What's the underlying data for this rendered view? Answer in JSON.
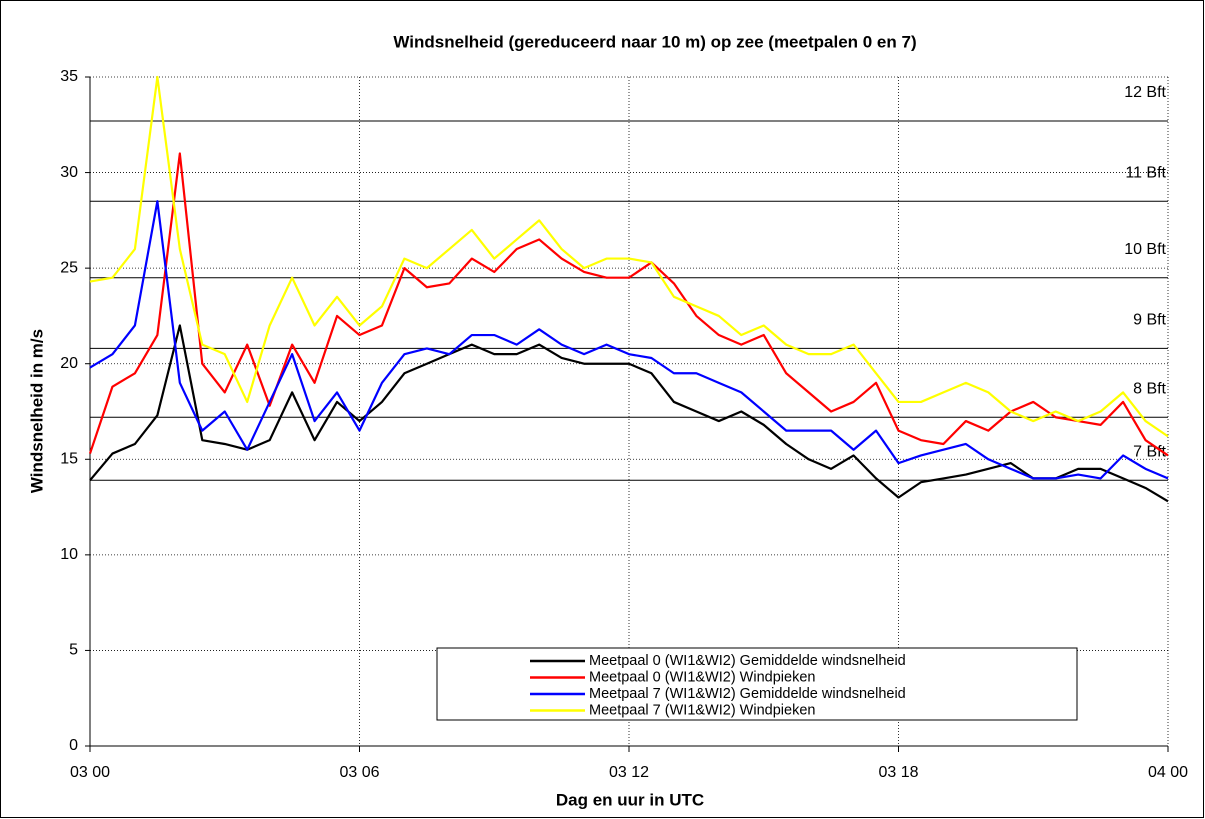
{
  "chart_data": {
    "type": "line",
    "title": "Windsnelheid (gereduceerd naar 10 m) op zee (meetpalen 0 en 7)",
    "x_label": "Dag en uur in UTC",
    "y_label": "Windsnelheid in m/s",
    "x": [
      0,
      0.5,
      1,
      1.5,
      2,
      2.5,
      3,
      3.5,
      4,
      4.5,
      5,
      5.5,
      6,
      6.5,
      7,
      7.5,
      8,
      8.5,
      9,
      9.5,
      10,
      10.5,
      11,
      11.5,
      12,
      12.5,
      13,
      13.5,
      14,
      14.5,
      15,
      15.5,
      16,
      16.5,
      17,
      17.5,
      18,
      18.5,
      19,
      19.5,
      20,
      20.5,
      21,
      21.5,
      22,
      22.5,
      23,
      23.5,
      24
    ],
    "series": [
      {
        "name": "Meetpaal 0 (WI1&WI2) Gemiddelde windsnelheid",
        "color": "#000000",
        "values": [
          13.9,
          15.3,
          15.8,
          17.3,
          22,
          16,
          15.8,
          15.5,
          16,
          18.5,
          16,
          18,
          17,
          18,
          19.5,
          20,
          20.5,
          21,
          20.5,
          20.5,
          21,
          20.3,
          20,
          20,
          20,
          19.5,
          18,
          17.5,
          17,
          17.5,
          16.8,
          15.8,
          15,
          14.5,
          15.2,
          14,
          13,
          13.8,
          14,
          14.2,
          14.5,
          14.8,
          14,
          14,
          14.5,
          14.5,
          14,
          13.5,
          12.8
        ]
      },
      {
        "name": "Meetpaal 0 (WI1&WI2) Windpieken",
        "color": "#ff0000",
        "values": [
          15.3,
          18.8,
          19.5,
          21.5,
          31,
          20,
          18.5,
          21,
          17.8,
          21,
          19,
          22.5,
          21.5,
          22,
          25,
          24,
          24.2,
          25.5,
          24.8,
          26,
          26.5,
          25.5,
          24.8,
          24.5,
          24.5,
          25.3,
          24.2,
          22.5,
          21.5,
          21,
          21.5,
          19.5,
          18.5,
          17.5,
          18,
          19,
          16.5,
          16,
          15.8,
          17,
          16.5,
          17.5,
          18,
          17.2,
          17,
          16.8,
          18,
          16,
          15.2
        ]
      },
      {
        "name": "Meetpaal 7 (WI1&WI2) Gemiddelde windsnelheid",
        "color": "#0000ff",
        "values": [
          19.8,
          20.5,
          22,
          28.5,
          19,
          16.5,
          17.5,
          15.5,
          18,
          20.5,
          17,
          18.5,
          16.5,
          19,
          20.5,
          20.8,
          20.5,
          21.5,
          21.5,
          21,
          21.8,
          21,
          20.5,
          21,
          20.5,
          20.3,
          19.5,
          19.5,
          19,
          18.5,
          17.5,
          16.5,
          16.5,
          16.5,
          15.5,
          16.5,
          14.8,
          15.2,
          15.5,
          15.8,
          15,
          14.5,
          14,
          14,
          14.2,
          14,
          15.2,
          14.5,
          14
        ]
      },
      {
        "name": "Meetpaal 7 (WI1&WI2) Windpieken",
        "color": "#ffff00",
        "values": [
          24.3,
          24.5,
          26,
          35,
          26,
          21,
          20.5,
          18,
          22,
          24.5,
          22,
          23.5,
          22,
          23,
          25.5,
          25,
          26,
          27,
          25.5,
          26.5,
          27.5,
          26,
          25,
          25.5,
          25.5,
          25.3,
          23.5,
          23,
          22.5,
          21.5,
          22,
          21,
          20.5,
          20.5,
          21,
          19.5,
          18,
          18,
          18.5,
          19,
          18.5,
          17.5,
          17,
          17.5,
          17,
          17.5,
          18.5,
          17,
          16.2
        ]
      }
    ],
    "xlim": [
      0,
      24
    ],
    "xticks": [
      {
        "value": 0,
        "label": "03 00"
      },
      {
        "value": 6,
        "label": "03 06"
      },
      {
        "value": 12,
        "label": "03 12"
      },
      {
        "value": 18,
        "label": "03 18"
      },
      {
        "value": 24,
        "label": "04 00"
      }
    ],
    "ylim": [
      0,
      35
    ],
    "yticks": [
      0,
      5,
      10,
      15,
      20,
      25,
      30,
      35
    ],
    "reference_lines": [
      {
        "value": 13.9,
        "label": "7 Bft"
      },
      {
        "value": 17.2,
        "label": "8 Bft"
      },
      {
        "value": 20.8,
        "label": "9 Bft"
      },
      {
        "value": 24.5,
        "label": "10 Bft"
      },
      {
        "value": 28.5,
        "label": "11 Bft"
      },
      {
        "value": 32.7,
        "label": "12 Bft"
      }
    ],
    "grid": true,
    "legend": "bottom"
  }
}
